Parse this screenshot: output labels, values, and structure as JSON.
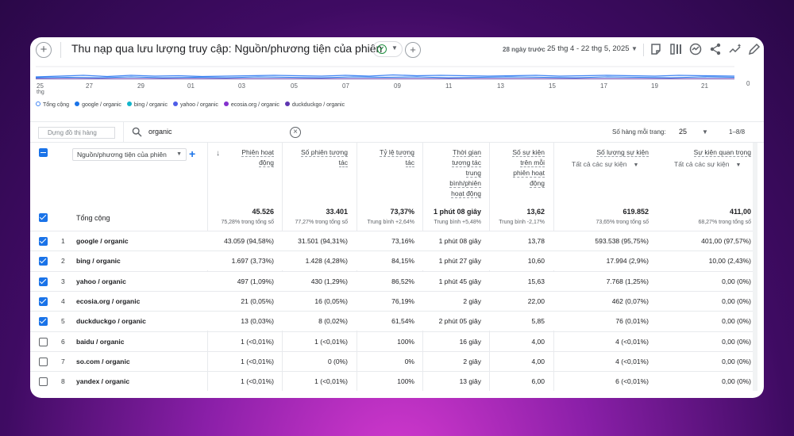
{
  "header": {
    "title": "Thu nạp qua lưu lượng truy cập: Nguồn/phương tiện của phiên",
    "date_label": "28 ngày trước",
    "date_range": "25 thg 4 - 22 thg 5, 2025"
  },
  "chart": {
    "x_ticks": [
      "25",
      "27",
      "29",
      "01",
      "03",
      "05",
      "07",
      "09",
      "11",
      "13",
      "15",
      "17",
      "19",
      "21"
    ],
    "x_first_sub": "thg",
    "y_zero": "0",
    "legend": [
      {
        "label": "Tổng cộng",
        "color": "#ffffff",
        "ring": "#4285f4"
      },
      {
        "label": "google / organic",
        "color": "#1a73e8"
      },
      {
        "label": "bing / organic",
        "color": "#12b5cb"
      },
      {
        "label": "yahoo / organic",
        "color": "#4e5de8"
      },
      {
        "label": "ecosia.org / organic",
        "color": "#8430ce"
      },
      {
        "label": "duckduckgo / organic",
        "color": "#5e35b1"
      }
    ]
  },
  "filter": {
    "rowgo_placeholder": "Dựng đồ thị hàng",
    "search_value": "organic",
    "rows_per_page_label": "Số hàng mỗi trang:",
    "rows_per_page": "25",
    "pager": "1–8/8"
  },
  "table": {
    "dimension": "Nguồn/phương tiện của phiên",
    "columns": [
      {
        "lines": [
          "Phiên hoạt",
          "động"
        ]
      },
      {
        "lines": [
          "Số phiên tương",
          "tác"
        ]
      },
      {
        "lines": [
          "Tỷ lệ tương",
          "tác"
        ]
      },
      {
        "lines": [
          "Thời gian",
          "tương tác",
          "trung",
          "bình/phiên",
          "hoạt động"
        ]
      },
      {
        "lines": [
          "Số sự kiện",
          "trên mỗi",
          "phiên hoạt",
          "động"
        ]
      },
      {
        "lines": [
          "Số lượng sự kiện"
        ],
        "sub": "Tất cả các sự kiện"
      },
      {
        "lines": [
          "Sự kiện quan trọng"
        ],
        "sub": "Tất cả các sự kiện"
      }
    ],
    "total": {
      "label": "Tổng cộng",
      "values": [
        "45.526",
        "33.401",
        "73,37%",
        "1 phút 08 giây",
        "13,62",
        "619.852",
        "411,00"
      ],
      "subs": [
        "75,28% trong tổng số",
        "77,27% trong tổng số",
        "Trung bình +2,64%",
        "Trung bình +5,48%",
        "Trung bình -2,17%",
        "73,65% trong tổng số",
        "68,27% trong tổng số"
      ]
    },
    "rows": [
      {
        "n": "1",
        "dim": "google / organic",
        "checked": true,
        "values": [
          "43.059 (94,58%)",
          "31.501 (94,31%)",
          "73,16%",
          "1 phút 08 giây",
          "13,78",
          "593.538 (95,75%)",
          "401,00 (97,57%)"
        ]
      },
      {
        "n": "2",
        "dim": "bing / organic",
        "checked": true,
        "values": [
          "1.697 (3,73%)",
          "1.428 (4,28%)",
          "84,15%",
          "1 phút 27 giây",
          "10,60",
          "17.994 (2,9%)",
          "10,00 (2,43%)"
        ]
      },
      {
        "n": "3",
        "dim": "yahoo / organic",
        "checked": true,
        "values": [
          "497 (1,09%)",
          "430 (1,29%)",
          "86,52%",
          "1 phút 45 giây",
          "15,63",
          "7.768 (1,25%)",
          "0,00 (0%)"
        ]
      },
      {
        "n": "4",
        "dim": "ecosia.org / organic",
        "checked": true,
        "values": [
          "21 (0,05%)",
          "16 (0,05%)",
          "76,19%",
          "2 giây",
          "22,00",
          "462 (0,07%)",
          "0,00 (0%)"
        ]
      },
      {
        "n": "5",
        "dim": "duckduckgo / organic",
        "checked": true,
        "values": [
          "13 (0,03%)",
          "8 (0,02%)",
          "61,54%",
          "2 phút 05 giây",
          "5,85",
          "76 (0,01%)",
          "0,00 (0%)"
        ]
      },
      {
        "n": "6",
        "dim": "baidu / organic",
        "checked": false,
        "values": [
          "1 (<0,01%)",
          "1 (<0,01%)",
          "100%",
          "16 giây",
          "4,00",
          "4 (<0,01%)",
          "0,00 (0%)"
        ]
      },
      {
        "n": "7",
        "dim": "so.com / organic",
        "checked": false,
        "values": [
          "1 (<0,01%)",
          "0 (0%)",
          "0%",
          "2 giây",
          "4,00",
          "4 (<0,01%)",
          "0,00 (0%)"
        ]
      },
      {
        "n": "8",
        "dim": "yandex / organic",
        "checked": false,
        "values": [
          "1 (<0,01%)",
          "1 (<0,01%)",
          "100%",
          "13 giây",
          "6,00",
          "6 (<0,01%)",
          "0,00 (0%)"
        ]
      }
    ]
  }
}
